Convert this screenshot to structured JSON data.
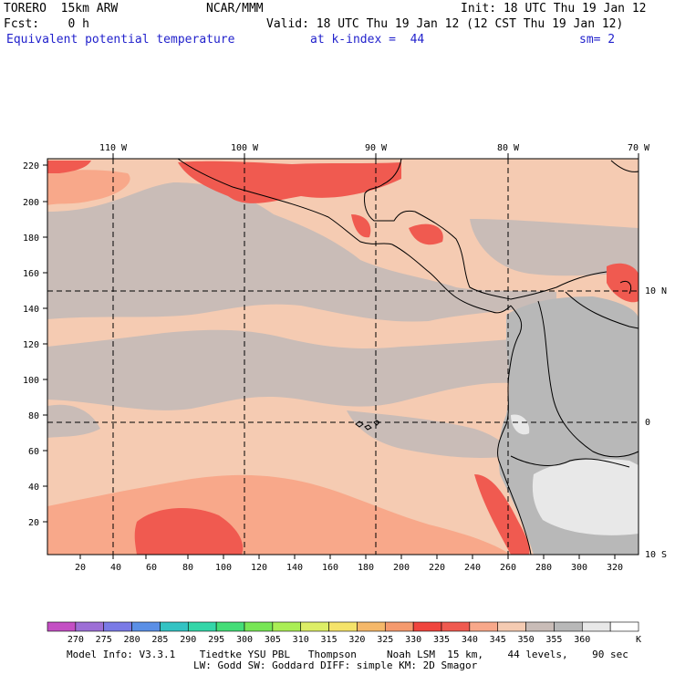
{
  "header": {
    "model": "TORERO  15km ARW",
    "org": "NCAR/MMM",
    "init": "Init: 18 UTC Thu 19 Jan 12",
    "fcst": "Fcst:    0 h",
    "valid": "Valid: 18 UTC Thu 19 Jan 12 (12 CST Thu 19 Jan 12)",
    "field": "Equivalent potential temperature",
    "level": "at k-index =  44",
    "smooth": "sm= 2"
  },
  "map": {
    "top_lon_labels": [
      "110 W",
      "100 W",
      "90 W",
      "80 W",
      "70 W"
    ],
    "right_lat_labels": [
      "10 N",
      "0",
      "10 S"
    ],
    "y_grid_labels": [
      "220",
      "200",
      "180",
      "160",
      "140",
      "120",
      "100",
      "80",
      "60",
      "40",
      "20"
    ],
    "x_grid_labels": [
      "20",
      "40",
      "60",
      "80",
      "100",
      "120",
      "140",
      "160",
      "180",
      "200",
      "220",
      "240",
      "260",
      "280",
      "300",
      "320"
    ],
    "field_colors": {
      "ocean_low": "#f5cbb2",
      "ocean_mid": "#f8a88a",
      "warm": "#f56a5a",
      "warmest": "#f0453e",
      "cool": "#c9bcb7",
      "cold": "#b8b8b8",
      "coldest": "#e8e8e8"
    }
  },
  "colorbar": {
    "labels": [
      "270",
      "275",
      "280",
      "285",
      "290",
      "295",
      "300",
      "305",
      "310",
      "315",
      "320",
      "325",
      "330",
      "335",
      "340",
      "345",
      "350",
      "355",
      "360"
    ],
    "unit": "K",
    "colors": [
      "#c44fc4",
      "#9d6fd6",
      "#7a7ae6",
      "#5a8fe6",
      "#33c3c3",
      "#33d6a8",
      "#44dd77",
      "#77e655",
      "#aaee55",
      "#ddee66",
      "#f5e36a",
      "#f5b86a",
      "#f59a6e",
      "#f0453e",
      "#f05a50",
      "#f8a88a",
      "#f5cbb2",
      "#c9bcb7",
      "#b8b8b8",
      "#e8e8e8",
      "#ffffff"
    ]
  },
  "footer": {
    "line1": "Model Info: V3.3.1    Tiedtke YSU PBL   Thompson     Noah LSM  15 km,    44 levels,    90 sec",
    "line2": "LW: Godd SW: Goddard DIFF: simple KM: 2D Smagor"
  }
}
